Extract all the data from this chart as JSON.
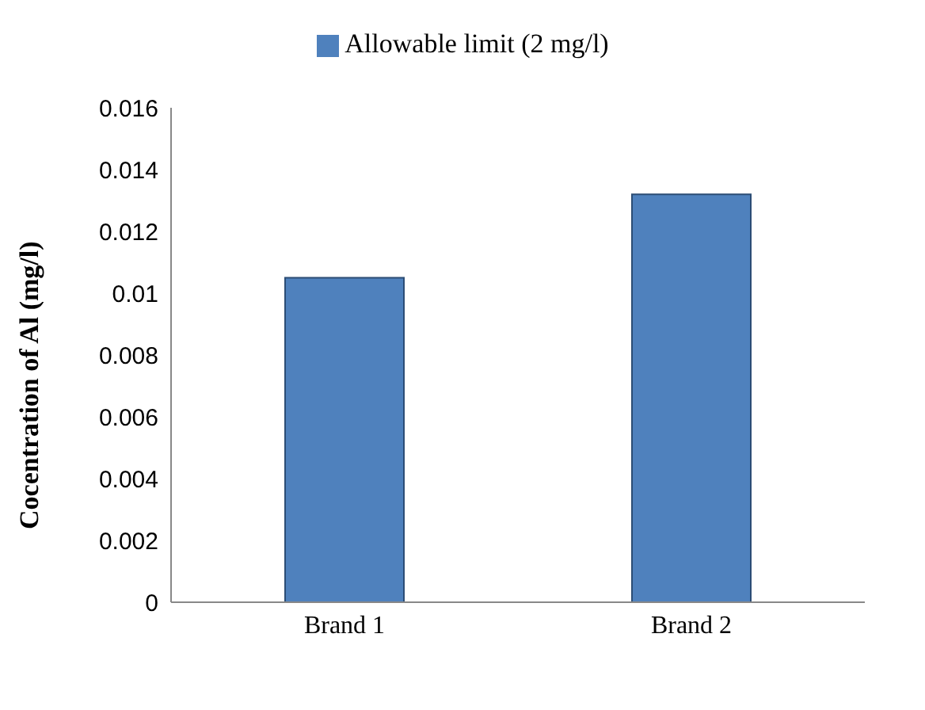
{
  "chart_data": {
    "type": "bar",
    "ylabel": "Cocentration of Al (mg/l)",
    "categories": [
      "Brand 1",
      "Brand 2"
    ],
    "series": [
      {
        "name": "Allowable limit (2 mg/l)",
        "color": "#4f81bd",
        "values": [
          0.0105,
          0.0132
        ]
      }
    ],
    "ylim": [
      0,
      0.016
    ],
    "yticks": [
      0,
      0.002,
      0.004,
      0.006,
      0.008,
      0.01,
      0.012,
      0.014,
      0.016
    ],
    "grid": false,
    "legend": "top"
  }
}
